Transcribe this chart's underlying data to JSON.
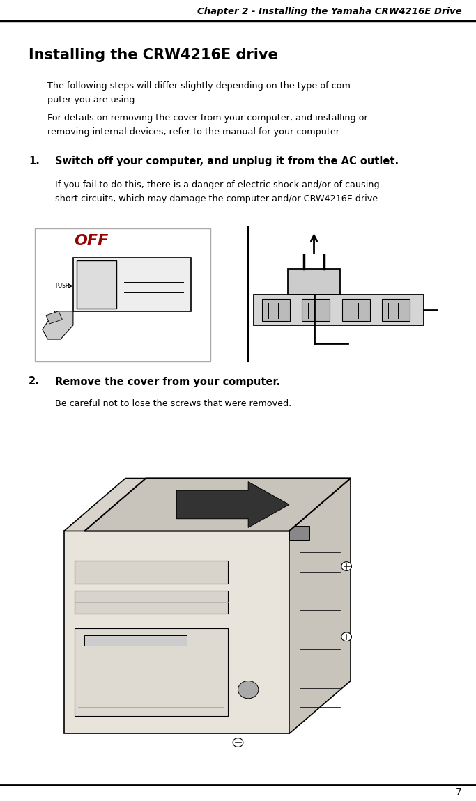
{
  "header_text": "Chapter 2 - Installing the Yamaha CRW4216E Drive",
  "page_number": "7",
  "section_title": "Installing the CRW4216E drive",
  "intro_text_1": "The following steps will differ slightly depending on the type of com-\nputer you are using.",
  "intro_text_2": "For details on removing the cover from your computer, and installing or\nremoving internal devices, refer to the manual for your computer.",
  "step1_num": "1.",
  "step1_bold": "Switch off your computer, and unplug it from the AC outlet.",
  "step1_body": "If you fail to do this, there is a danger of electric shock and/or of causing\nshort circuits, which may damage the computer and/or CRW4216E drive.",
  "step2_num": "2.",
  "step2_bold": "Remove the cover from your computer.",
  "step2_body": "Be careful not to lose the screws that were removed.",
  "bg_color": "#ffffff",
  "text_color": "#000000"
}
